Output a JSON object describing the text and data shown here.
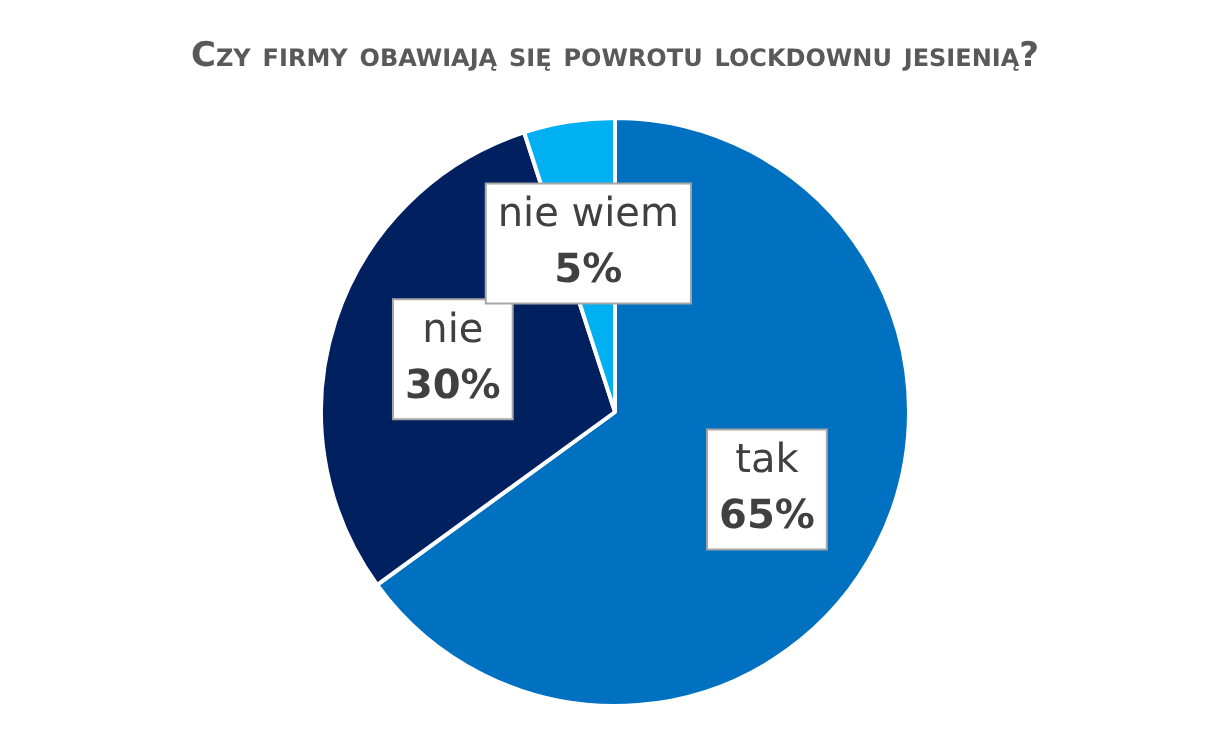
{
  "chart_data": {
    "type": "pie",
    "title": "Czy firmy obawiają się powrotu lockdownu jesienią?",
    "categories": [
      "tak",
      "nie",
      "nie wiem"
    ],
    "values": [
      65,
      30,
      5
    ],
    "colors": [
      "#0070c0",
      "#002060",
      "#00b0f0"
    ],
    "value_labels": [
      "65%",
      "30%",
      "5%"
    ]
  }
}
